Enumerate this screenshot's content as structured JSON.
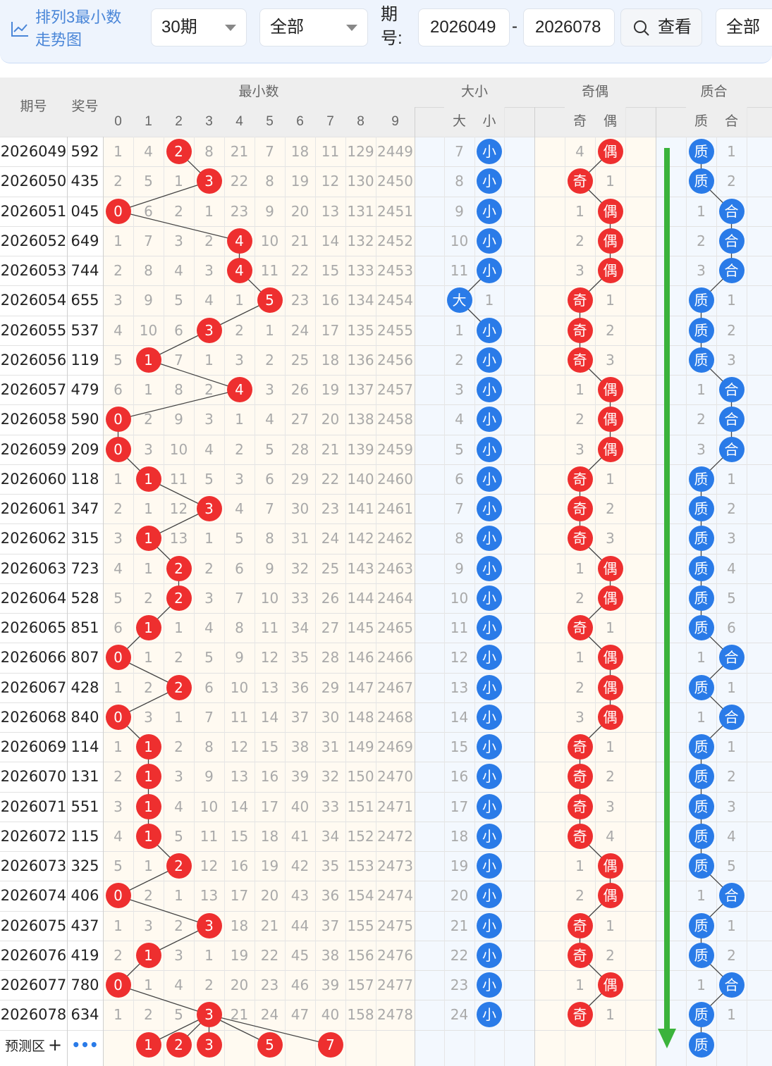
{
  "toolbar": {
    "title": "排列3最小数走势图",
    "period_select": "30期",
    "filter_select": "全部",
    "period_label": "期号:",
    "start_issue": "2026049",
    "end_issue": "2026078",
    "query_button": "查看",
    "all_button": "全部"
  },
  "table": {
    "col_issue": "期号",
    "col_prize": "奖号",
    "group_min": "最小数",
    "group_size": "大小",
    "group_parity": "奇偶",
    "group_prime": "质合",
    "digits": [
      "0",
      "1",
      "2",
      "3",
      "4",
      "5",
      "6",
      "7",
      "8",
      "9"
    ],
    "size_labels": [
      "大",
      "小"
    ],
    "parity_labels": [
      "奇",
      "偶"
    ],
    "prime_labels": [
      "质",
      "合"
    ],
    "rows": [
      {
        "issue": "2026049",
        "prize": "592",
        "d": [
          "1",
          "4",
          "2",
          "8",
          "21",
          "7",
          "18",
          "11",
          "129",
          "2449"
        ],
        "hit": 2,
        "size": [
          "7",
          "小"
        ],
        "sh": 1,
        "par": [
          "4",
          "偶"
        ],
        "ph": 1,
        "pri": [
          "质",
          "1"
        ],
        "qh": 0
      },
      {
        "issue": "2026050",
        "prize": "435",
        "d": [
          "2",
          "5",
          "1",
          "3",
          "22",
          "8",
          "19",
          "12",
          "130",
          "2450"
        ],
        "hit": 3,
        "size": [
          "8",
          "小"
        ],
        "sh": 1,
        "par": [
          "奇",
          "1"
        ],
        "ph": 0,
        "pri": [
          "质",
          "2"
        ],
        "qh": 0
      },
      {
        "issue": "2026051",
        "prize": "045",
        "d": [
          "0",
          "6",
          "2",
          "1",
          "23",
          "9",
          "20",
          "13",
          "131",
          "2451"
        ],
        "hit": 0,
        "size": [
          "9",
          "小"
        ],
        "sh": 1,
        "par": [
          "1",
          "偶"
        ],
        "ph": 1,
        "pri": [
          "1",
          "合"
        ],
        "qh": 1
      },
      {
        "issue": "2026052",
        "prize": "649",
        "d": [
          "1",
          "7",
          "3",
          "2",
          "4",
          "10",
          "21",
          "14",
          "132",
          "2452"
        ],
        "hit": 4,
        "size": [
          "10",
          "小"
        ],
        "sh": 1,
        "par": [
          "2",
          "偶"
        ],
        "ph": 1,
        "pri": [
          "2",
          "合"
        ],
        "qh": 1
      },
      {
        "issue": "2026053",
        "prize": "744",
        "d": [
          "2",
          "8",
          "4",
          "3",
          "4",
          "11",
          "22",
          "15",
          "133",
          "2453"
        ],
        "hit": 4,
        "size": [
          "11",
          "小"
        ],
        "sh": 1,
        "par": [
          "3",
          "偶"
        ],
        "ph": 1,
        "pri": [
          "3",
          "合"
        ],
        "qh": 1
      },
      {
        "issue": "2026054",
        "prize": "655",
        "d": [
          "3",
          "9",
          "5",
          "4",
          "1",
          "5",
          "23",
          "16",
          "134",
          "2454"
        ],
        "hit": 5,
        "size": [
          "大",
          "1"
        ],
        "sh": 0,
        "par": [
          "奇",
          "1"
        ],
        "ph": 0,
        "pri": [
          "质",
          "1"
        ],
        "qh": 0
      },
      {
        "issue": "2026055",
        "prize": "537",
        "d": [
          "4",
          "10",
          "6",
          "3",
          "2",
          "1",
          "24",
          "17",
          "135",
          "2455"
        ],
        "hit": 3,
        "size": [
          "1",
          "小"
        ],
        "sh": 1,
        "par": [
          "奇",
          "2"
        ],
        "ph": 0,
        "pri": [
          "质",
          "2"
        ],
        "qh": 0
      },
      {
        "issue": "2026056",
        "prize": "119",
        "d": [
          "5",
          "1",
          "7",
          "1",
          "3",
          "2",
          "25",
          "18",
          "136",
          "2456"
        ],
        "hit": 1,
        "size": [
          "2",
          "小"
        ],
        "sh": 1,
        "par": [
          "奇",
          "3"
        ],
        "ph": 0,
        "pri": [
          "质",
          "3"
        ],
        "qh": 0
      },
      {
        "issue": "2026057",
        "prize": "479",
        "d": [
          "6",
          "1",
          "8",
          "2",
          "4",
          "3",
          "26",
          "19",
          "137",
          "2457"
        ],
        "hit": 4,
        "size": [
          "3",
          "小"
        ],
        "sh": 1,
        "par": [
          "1",
          "偶"
        ],
        "ph": 1,
        "pri": [
          "1",
          "合"
        ],
        "qh": 1
      },
      {
        "issue": "2026058",
        "prize": "590",
        "d": [
          "0",
          "2",
          "9",
          "3",
          "1",
          "4",
          "27",
          "20",
          "138",
          "2458"
        ],
        "hit": 0,
        "size": [
          "4",
          "小"
        ],
        "sh": 1,
        "par": [
          "2",
          "偶"
        ],
        "ph": 1,
        "pri": [
          "2",
          "合"
        ],
        "qh": 1
      },
      {
        "issue": "2026059",
        "prize": "209",
        "d": [
          "0",
          "3",
          "10",
          "4",
          "2",
          "5",
          "28",
          "21",
          "139",
          "2459"
        ],
        "hit": 0,
        "size": [
          "5",
          "小"
        ],
        "sh": 1,
        "par": [
          "3",
          "偶"
        ],
        "ph": 1,
        "pri": [
          "3",
          "合"
        ],
        "qh": 1
      },
      {
        "issue": "2026060",
        "prize": "118",
        "d": [
          "1",
          "1",
          "11",
          "5",
          "3",
          "6",
          "29",
          "22",
          "140",
          "2460"
        ],
        "hit": 1,
        "size": [
          "6",
          "小"
        ],
        "sh": 1,
        "par": [
          "奇",
          "1"
        ],
        "ph": 0,
        "pri": [
          "质",
          "1"
        ],
        "qh": 0
      },
      {
        "issue": "2026061",
        "prize": "347",
        "d": [
          "2",
          "1",
          "12",
          "3",
          "4",
          "7",
          "30",
          "23",
          "141",
          "2461"
        ],
        "hit": 3,
        "size": [
          "7",
          "小"
        ],
        "sh": 1,
        "par": [
          "奇",
          "2"
        ],
        "ph": 0,
        "pri": [
          "质",
          "2"
        ],
        "qh": 0
      },
      {
        "issue": "2026062",
        "prize": "315",
        "d": [
          "3",
          "1",
          "13",
          "1",
          "5",
          "8",
          "31",
          "24",
          "142",
          "2462"
        ],
        "hit": 1,
        "size": [
          "8",
          "小"
        ],
        "sh": 1,
        "par": [
          "奇",
          "3"
        ],
        "ph": 0,
        "pri": [
          "质",
          "3"
        ],
        "qh": 0
      },
      {
        "issue": "2026063",
        "prize": "723",
        "d": [
          "4",
          "1",
          "2",
          "2",
          "6",
          "9",
          "32",
          "25",
          "143",
          "2463"
        ],
        "hit": 2,
        "size": [
          "9",
          "小"
        ],
        "sh": 1,
        "par": [
          "1",
          "偶"
        ],
        "ph": 1,
        "pri": [
          "质",
          "4"
        ],
        "qh": 0
      },
      {
        "issue": "2026064",
        "prize": "528",
        "d": [
          "5",
          "2",
          "2",
          "3",
          "7",
          "10",
          "33",
          "26",
          "144",
          "2464"
        ],
        "hit": 2,
        "size": [
          "10",
          "小"
        ],
        "sh": 1,
        "par": [
          "2",
          "偶"
        ],
        "ph": 1,
        "pri": [
          "质",
          "5"
        ],
        "qh": 0
      },
      {
        "issue": "2026065",
        "prize": "851",
        "d": [
          "6",
          "1",
          "1",
          "4",
          "8",
          "11",
          "34",
          "27",
          "145",
          "2465"
        ],
        "hit": 1,
        "size": [
          "11",
          "小"
        ],
        "sh": 1,
        "par": [
          "奇",
          "1"
        ],
        "ph": 0,
        "pri": [
          "质",
          "6"
        ],
        "qh": 0
      },
      {
        "issue": "2026066",
        "prize": "807",
        "d": [
          "0",
          "1",
          "2",
          "5",
          "9",
          "12",
          "35",
          "28",
          "146",
          "2466"
        ],
        "hit": 0,
        "size": [
          "12",
          "小"
        ],
        "sh": 1,
        "par": [
          "1",
          "偶"
        ],
        "ph": 1,
        "pri": [
          "1",
          "合"
        ],
        "qh": 1
      },
      {
        "issue": "2026067",
        "prize": "428",
        "d": [
          "1",
          "2",
          "2",
          "6",
          "10",
          "13",
          "36",
          "29",
          "147",
          "2467"
        ],
        "hit": 2,
        "size": [
          "13",
          "小"
        ],
        "sh": 1,
        "par": [
          "2",
          "偶"
        ],
        "ph": 1,
        "pri": [
          "质",
          "1"
        ],
        "qh": 0
      },
      {
        "issue": "2026068",
        "prize": "840",
        "d": [
          "0",
          "3",
          "1",
          "7",
          "11",
          "14",
          "37",
          "30",
          "148",
          "2468"
        ],
        "hit": 0,
        "size": [
          "14",
          "小"
        ],
        "sh": 1,
        "par": [
          "3",
          "偶"
        ],
        "ph": 1,
        "pri": [
          "1",
          "合"
        ],
        "qh": 1
      },
      {
        "issue": "2026069",
        "prize": "114",
        "d": [
          "1",
          "1",
          "2",
          "8",
          "12",
          "15",
          "38",
          "31",
          "149",
          "2469"
        ],
        "hit": 1,
        "size": [
          "15",
          "小"
        ],
        "sh": 1,
        "par": [
          "奇",
          "1"
        ],
        "ph": 0,
        "pri": [
          "质",
          "1"
        ],
        "qh": 0
      },
      {
        "issue": "2026070",
        "prize": "131",
        "d": [
          "2",
          "1",
          "3",
          "9",
          "13",
          "16",
          "39",
          "32",
          "150",
          "2470"
        ],
        "hit": 1,
        "size": [
          "16",
          "小"
        ],
        "sh": 1,
        "par": [
          "奇",
          "2"
        ],
        "ph": 0,
        "pri": [
          "质",
          "2"
        ],
        "qh": 0
      },
      {
        "issue": "2026071",
        "prize": "551",
        "d": [
          "3",
          "1",
          "4",
          "10",
          "14",
          "17",
          "40",
          "33",
          "151",
          "2471"
        ],
        "hit": 1,
        "size": [
          "17",
          "小"
        ],
        "sh": 1,
        "par": [
          "奇",
          "3"
        ],
        "ph": 0,
        "pri": [
          "质",
          "3"
        ],
        "qh": 0
      },
      {
        "issue": "2026072",
        "prize": "115",
        "d": [
          "4",
          "1",
          "5",
          "11",
          "15",
          "18",
          "41",
          "34",
          "152",
          "2472"
        ],
        "hit": 1,
        "size": [
          "18",
          "小"
        ],
        "sh": 1,
        "par": [
          "奇",
          "4"
        ],
        "ph": 0,
        "pri": [
          "质",
          "4"
        ],
        "qh": 0
      },
      {
        "issue": "2026073",
        "prize": "325",
        "d": [
          "5",
          "1",
          "2",
          "12",
          "16",
          "19",
          "42",
          "35",
          "153",
          "2473"
        ],
        "hit": 2,
        "size": [
          "19",
          "小"
        ],
        "sh": 1,
        "par": [
          "1",
          "偶"
        ],
        "ph": 1,
        "pri": [
          "质",
          "5"
        ],
        "qh": 0
      },
      {
        "issue": "2026074",
        "prize": "406",
        "d": [
          "0",
          "2",
          "1",
          "13",
          "17",
          "20",
          "43",
          "36",
          "154",
          "2474"
        ],
        "hit": 0,
        "size": [
          "20",
          "小"
        ],
        "sh": 1,
        "par": [
          "2",
          "偶"
        ],
        "ph": 1,
        "pri": [
          "1",
          "合"
        ],
        "qh": 1
      },
      {
        "issue": "2026075",
        "prize": "437",
        "d": [
          "1",
          "3",
          "2",
          "3",
          "18",
          "21",
          "44",
          "37",
          "155",
          "2475"
        ],
        "hit": 3,
        "size": [
          "21",
          "小"
        ],
        "sh": 1,
        "par": [
          "奇",
          "1"
        ],
        "ph": 0,
        "pri": [
          "质",
          "1"
        ],
        "qh": 0
      },
      {
        "issue": "2026076",
        "prize": "419",
        "d": [
          "2",
          "1",
          "3",
          "1",
          "19",
          "22",
          "45",
          "38",
          "156",
          "2476"
        ],
        "hit": 1,
        "size": [
          "22",
          "小"
        ],
        "sh": 1,
        "par": [
          "奇",
          "2"
        ],
        "ph": 0,
        "pri": [
          "质",
          "2"
        ],
        "qh": 0
      },
      {
        "issue": "2026077",
        "prize": "780",
        "d": [
          "0",
          "1",
          "4",
          "2",
          "20",
          "23",
          "46",
          "39",
          "157",
          "2477"
        ],
        "hit": 0,
        "size": [
          "23",
          "小"
        ],
        "sh": 1,
        "par": [
          "1",
          "偶"
        ],
        "ph": 1,
        "pri": [
          "1",
          "合"
        ],
        "qh": 1
      },
      {
        "issue": "2026078",
        "prize": "634",
        "d": [
          "1",
          "2",
          "5",
          "3",
          "21",
          "24",
          "47",
          "40",
          "158",
          "2478"
        ],
        "hit": 3,
        "size": [
          "24",
          "小"
        ],
        "sh": 1,
        "par": [
          "奇",
          "1"
        ],
        "ph": 0,
        "pri": [
          "质",
          "1"
        ],
        "qh": 0
      }
    ],
    "forecast": {
      "label": "预测区",
      "plus": "+",
      "more": "•••",
      "balls": [
        {
          "col": 1,
          "text": "1"
        },
        {
          "col": 2,
          "text": "2"
        },
        {
          "col": 3,
          "text": "3"
        },
        {
          "col": 5,
          "text": "5"
        },
        {
          "col": 7,
          "text": "7"
        }
      ],
      "prime_ball": "质"
    }
  },
  "colors": {
    "red_ball": "#ee2f2f",
    "blue_ball": "#2a7be8",
    "arrow": "#3bb33b",
    "header_bg": "#eeeeee",
    "toolbar_bg": "#eef4fd"
  },
  "icons": {
    "chart": "line-chart-icon",
    "search": "search-icon",
    "dropdown": "chevron-down-icon",
    "arrow": "down-arrow-icon"
  }
}
